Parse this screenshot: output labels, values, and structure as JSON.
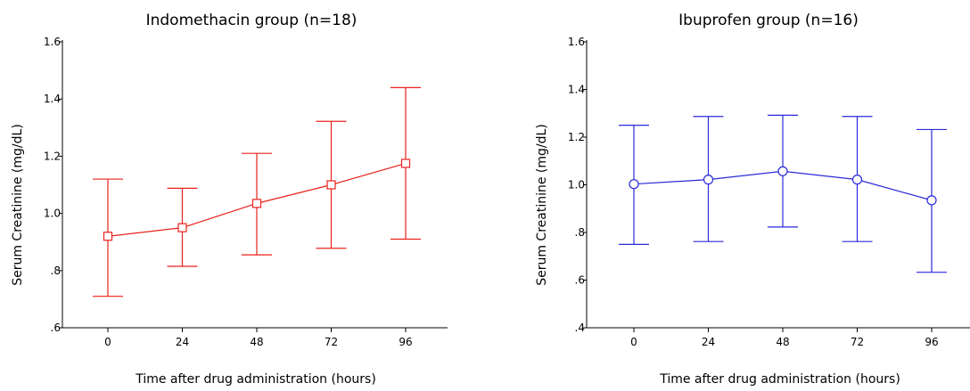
{
  "chart_data": [
    {
      "type": "line",
      "title": "Indomethacin group (n=18)",
      "xlabel": "Time after drug administration (hours)",
      "ylabel": "Serum Creatinine (mg/dL)",
      "categories": [
        "0",
        "24",
        "48",
        "72",
        "96"
      ],
      "y_tick_labels": [
        ".6",
        ".8",
        "1.0",
        "1.2",
        "1.4",
        "1.6"
      ],
      "y_ticks": [
        0.6,
        0.8,
        1.0,
        1.2,
        1.4,
        1.6
      ],
      "ylim": [
        0.6,
        1.6
      ],
      "marker": "square",
      "color": "#e8221b",
      "series": [
        {
          "values": [
            0.92,
            0.95,
            1.035,
            1.1,
            1.175
          ],
          "error_low": [
            0.71,
            0.815,
            0.855,
            0.878,
            0.91
          ],
          "error_high": [
            1.12,
            1.088,
            1.21,
            1.322,
            1.44
          ]
        }
      ],
      "grid": false,
      "legend": "none"
    },
    {
      "type": "line",
      "title": "Ibuprofen group (n=16)",
      "xlabel": "Time after drug administration (hours)",
      "ylabel": "Serum Creatinine (mg/dL)",
      "categories": [
        "0",
        "24",
        "48",
        "72",
        "96"
      ],
      "y_tick_labels": [
        ".4",
        ".6",
        ".8",
        "1.0",
        "1.2",
        "1.4",
        "1.6"
      ],
      "y_ticks": [
        0.4,
        0.6,
        0.8,
        1.0,
        1.2,
        1.4,
        1.6
      ],
      "ylim": [
        0.4,
        1.6
      ],
      "marker": "circle",
      "color": "#2a2ad9",
      "series": [
        {
          "values": [
            1.003,
            1.022,
            1.057,
            1.022,
            0.935
          ],
          "error_low": [
            0.75,
            0.762,
            0.823,
            0.762,
            0.633
          ],
          "error_high": [
            1.25,
            1.287,
            1.292,
            1.287,
            1.232
          ]
        }
      ],
      "grid": false,
      "legend": "none"
    }
  ]
}
